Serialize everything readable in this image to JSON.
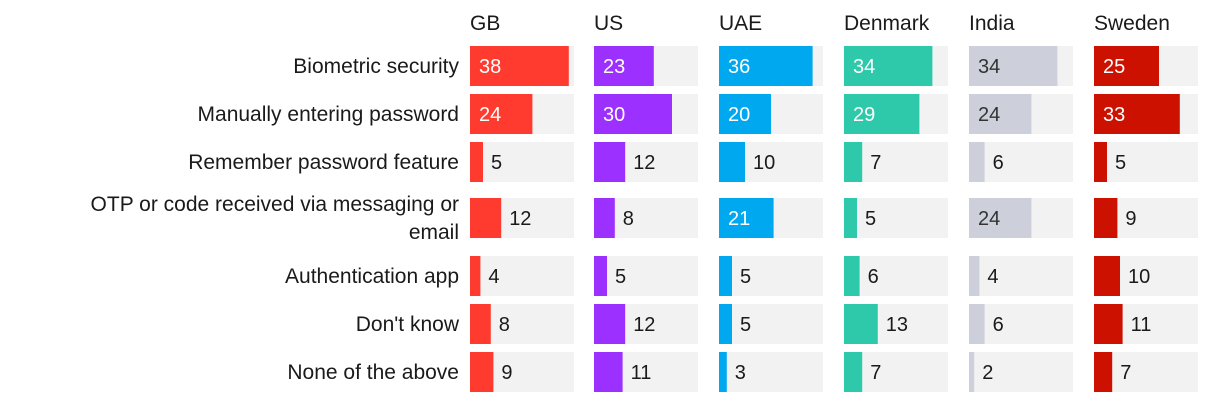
{
  "chart_data": {
    "type": "bar",
    "orientation": "horizontal",
    "layout": "small-multiples",
    "title": "",
    "xlabel": "",
    "ylabel": "",
    "xlim": [
      0,
      40
    ],
    "grid": false,
    "legend": "none",
    "categories": [
      [
        "Biometric security"
      ],
      [
        "Manually entering password"
      ],
      [
        "Remember password feature"
      ],
      [
        "OTP or code received via messaging or",
        "email"
      ],
      [
        "Authentication app"
      ],
      [
        "Don't know"
      ],
      [
        "None of the above"
      ]
    ],
    "series": [
      {
        "name": "GB",
        "color": "#ff3b2f",
        "values": [
          38,
          24,
          5,
          12,
          4,
          8,
          9
        ]
      },
      {
        "name": "US",
        "color": "#9b30ff",
        "values": [
          23,
          30,
          12,
          8,
          5,
          12,
          11
        ]
      },
      {
        "name": "UAE",
        "color": "#00a8f0",
        "values": [
          36,
          20,
          10,
          21,
          5,
          5,
          3
        ]
      },
      {
        "name": "Denmark",
        "color": "#2ec9aa",
        "values": [
          34,
          29,
          7,
          5,
          6,
          13,
          7
        ]
      },
      {
        "name": "India",
        "color": "#cdd0da",
        "values": [
          34,
          24,
          6,
          24,
          4,
          6,
          2
        ]
      },
      {
        "name": "Sweden",
        "color": "#cc1100",
        "values": [
          25,
          33,
          5,
          9,
          10,
          11,
          7
        ]
      }
    ],
    "track_color": "#f2f2f2",
    "label_inside_color": "#ffffff",
    "label_inside_dark_color": "#333333",
    "label_outside_color": "#1a1a1a"
  }
}
